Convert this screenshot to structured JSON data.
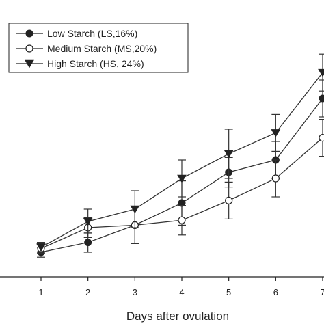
{
  "chart_data": {
    "type": "line",
    "title": "",
    "xlabel": "Days after ovulation",
    "ylabel": "",
    "x": [
      1,
      2,
      3,
      4,
      5,
      6,
      7
    ],
    "xlim": [
      0,
      7
    ],
    "ylim": [
      0,
      20
    ],
    "grid": false,
    "legend_position": "top-left",
    "series": [
      {
        "name": "Low Starch (LS,16%)",
        "marker": "filled-circle",
        "color": "#222222",
        "values": [
          2.0,
          2.8,
          4.2,
          6.0,
          8.5,
          9.5,
          14.5
        ],
        "error": [
          0.4,
          0.8,
          1.5,
          1.8,
          1.2,
          1.5,
          1.5
        ]
      },
      {
        "name": "Medium Starch (MS,20%)",
        "marker": "open-circle",
        "color": "#222222",
        "values": [
          2.3,
          4.0,
          4.2,
          4.6,
          6.2,
          8.0,
          11.3
        ],
        "error": [
          0.4,
          0.8,
          1.5,
          1.2,
          1.5,
          1.5,
          1.5
        ]
      },
      {
        "name": "High Starch (HS, 24%)",
        "marker": "filled-triangle-down",
        "color": "#222222",
        "values": [
          2.4,
          4.5,
          5.5,
          8.0,
          10.0,
          11.7,
          16.6
        ],
        "error": [
          0.4,
          1.0,
          1.5,
          1.5,
          2.0,
          1.5,
          1.5
        ]
      }
    ]
  }
}
